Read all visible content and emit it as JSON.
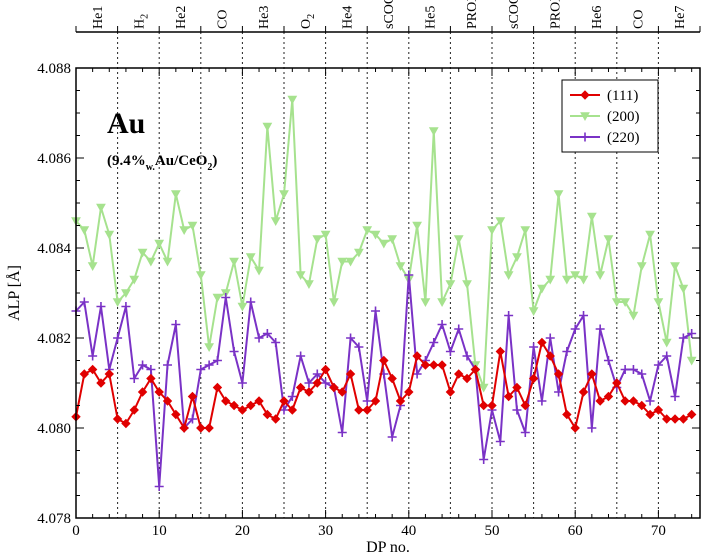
{
  "chart_data": {
    "type": "line",
    "title": "",
    "xlabel": "DP no.",
    "ylabel": "ALP [Å]",
    "xlim": [
      0,
      75
    ],
    "ylim": [
      4.078,
      4.088
    ],
    "grid": false,
    "x_ticks": [
      0,
      10,
      20,
      30,
      40,
      50,
      60,
      70
    ],
    "x_tick_labels": [
      "0",
      "10",
      "20",
      "30",
      "40",
      "50",
      "60",
      "70"
    ],
    "y_ticks": [
      4.078,
      4.08,
      4.082,
      4.084,
      4.086,
      4.088
    ],
    "y_tick_labels": [
      "4.078",
      "4.080",
      "4.082",
      "4.084",
      "4.086",
      "4.088"
    ],
    "phase_boundaries": [
      5,
      10,
      15,
      20,
      25,
      30,
      35,
      40,
      45,
      50,
      55,
      60,
      65,
      70
    ],
    "phases": [
      {
        "label": "He1",
        "sub": "",
        "start": 0,
        "end": 5
      },
      {
        "label": "H",
        "sub": "2",
        "start": 5,
        "end": 10
      },
      {
        "label": "He2",
        "sub": "",
        "start": 10,
        "end": 15
      },
      {
        "label": "CO",
        "sub": "",
        "start": 15,
        "end": 20
      },
      {
        "label": "He3",
        "sub": "",
        "start": 20,
        "end": 25
      },
      {
        "label": "O",
        "sub": "2",
        "start": 25,
        "end": 30
      },
      {
        "label": "He4",
        "sub": "",
        "start": 30,
        "end": 35
      },
      {
        "label": "sCOOX",
        "sub": "",
        "start": 35,
        "end": 40
      },
      {
        "label": "He5",
        "sub": "",
        "start": 40,
        "end": 45
      },
      {
        "label": "PROX",
        "sub": "",
        "start": 45,
        "end": 50
      },
      {
        "label": "sCOOX",
        "sub": "",
        "start": 50,
        "end": 55
      },
      {
        "label": "PROX",
        "sub": "",
        "start": 55,
        "end": 60
      },
      {
        "label": "He6",
        "sub": "",
        "start": 60,
        "end": 65
      },
      {
        "label": "CO",
        "sub": "",
        "start": 65,
        "end": 70
      },
      {
        "label": "He7",
        "sub": "",
        "start": 70,
        "end": 75
      }
    ],
    "annotation": {
      "title": "Au",
      "formula_pre": "(9.4%",
      "formula_sub1": "w.",
      "formula_mid": "Au/CeO",
      "formula_sub2": "2",
      "formula_post": ")"
    },
    "legend_position": "top-right",
    "series": [
      {
        "name": "(111)",
        "color": "#e00000",
        "marker": "diamond",
        "values": [
          4.08025,
          4.0812,
          4.0813,
          4.081,
          4.0812,
          4.0802,
          4.0801,
          4.0804,
          4.0808,
          4.0811,
          4.0808,
          4.0806,
          4.0803,
          4.08,
          4.0807,
          4.08,
          4.08,
          4.0809,
          4.0806,
          4.0805,
          4.0804,
          4.0805,
          4.0806,
          4.0803,
          4.0802,
          4.0806,
          4.0804,
          4.0809,
          4.0808,
          4.081,
          4.0813,
          4.0809,
          4.0808,
          4.0812,
          4.0804,
          4.0804,
          4.0806,
          4.0815,
          4.0811,
          4.0806,
          4.0808,
          4.0816,
          4.0814,
          4.0814,
          4.0814,
          4.0808,
          4.0812,
          4.0811,
          4.0813,
          4.0805,
          4.0805,
          4.0817,
          4.0807,
          4.0809,
          4.0805,
          4.0811,
          4.0819,
          4.0816,
          4.0812,
          4.0803,
          4.08,
          4.0808,
          4.0812,
          4.0806,
          4.0807,
          4.081,
          4.0806,
          4.0806,
          4.0805,
          4.0803,
          4.0804,
          4.0802,
          4.0802,
          4.0802,
          4.0803
        ]
      },
      {
        "name": "(200)",
        "color": "#a6e28e",
        "marker": "triangle-down",
        "values": [
          4.0846,
          4.0844,
          4.0836,
          4.0849,
          4.0843,
          4.0828,
          4.083,
          4.0833,
          4.0839,
          4.0837,
          4.0841,
          4.0837,
          4.0852,
          4.0844,
          4.0845,
          4.0834,
          4.0818,
          4.0829,
          4.083,
          4.0837,
          4.0827,
          4.0838,
          4.0835,
          4.0867,
          4.0846,
          4.0852,
          4.0873,
          4.0834,
          4.0832,
          4.0842,
          4.0843,
          4.0828,
          4.0837,
          4.0837,
          4.0839,
          4.0844,
          4.0843,
          4.0841,
          4.0842,
          4.0836,
          4.0833,
          4.0845,
          4.0828,
          4.0866,
          4.0828,
          4.0832,
          4.0842,
          4.0832,
          4.0814,
          4.0809,
          4.0844,
          4.0846,
          4.0834,
          4.0838,
          4.0844,
          4.0826,
          4.0831,
          4.0833,
          4.0852,
          4.0833,
          4.0834,
          4.0833,
          4.0847,
          4.0834,
          4.0842,
          4.0828,
          4.0828,
          4.0825,
          4.0836,
          4.0843,
          4.0828,
          4.0819,
          4.0836,
          4.0831,
          4.0815
        ]
      },
      {
        "name": "(220)",
        "color": "#7a32c6",
        "marker": "plus",
        "values": [
          4.0826,
          4.0828,
          4.0816,
          4.0827,
          4.0813,
          4.082,
          4.0827,
          4.0811,
          4.0814,
          4.0813,
          4.0787,
          4.0814,
          4.0823,
          4.08,
          4.0802,
          4.0813,
          4.0814,
          4.0815,
          4.0829,
          4.0817,
          4.081,
          4.0828,
          4.082,
          4.0821,
          4.0819,
          4.0804,
          4.0807,
          4.0816,
          4.081,
          4.0812,
          4.081,
          4.0809,
          4.0799,
          4.082,
          4.0818,
          4.0806,
          4.0826,
          4.0812,
          4.0798,
          4.0805,
          4.0834,
          4.0812,
          4.0815,
          4.0819,
          4.0823,
          4.0817,
          4.0822,
          4.0816,
          4.0813,
          4.0793,
          4.0804,
          4.0797,
          4.0825,
          4.0804,
          4.0799,
          4.0818,
          4.0806,
          4.082,
          4.0808,
          4.0817,
          4.0822,
          4.0825,
          4.08,
          4.0822,
          4.0815,
          4.0809,
          4.0813,
          4.0813,
          4.0812,
          4.0806,
          4.0814,
          4.0816,
          4.0807,
          4.082,
          4.0821
        ]
      }
    ]
  }
}
